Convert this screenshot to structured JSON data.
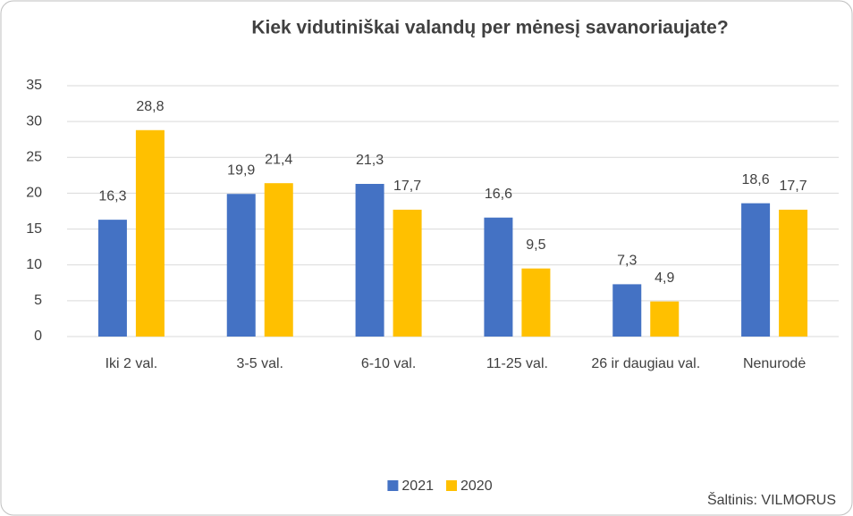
{
  "chart_data": {
    "type": "bar",
    "title": "Kiek vidutiniškai valandų per mėnesį savanoriaujate?",
    "categories": [
      "Iki 2 val.",
      "3-5 val.",
      "6-10 val.",
      "11-25 val.",
      "26 ir daugiau val.",
      "Nenurodė"
    ],
    "series": [
      {
        "name": "2021",
        "color": "#4472c4",
        "values": [
          16.3,
          19.9,
          21.3,
          16.6,
          7.3,
          18.6
        ],
        "value_labels": [
          "16,3",
          "19,9",
          "21,3",
          "16,6",
          "7,3",
          "18,6"
        ]
      },
      {
        "name": "2020",
        "color": "#ffc000",
        "values": [
          28.8,
          21.4,
          17.7,
          9.5,
          4.9,
          17.7
        ],
        "value_labels": [
          "28,8",
          "21,4",
          "17,7",
          "9,5",
          "4,9",
          "17,7"
        ]
      }
    ],
    "ylim": [
      0,
      35
    ],
    "yticks": [
      0,
      5,
      10,
      15,
      20,
      25,
      30,
      35
    ],
    "grid": true,
    "legend": "bottom",
    "source": "Šaltinis: VILMORUS"
  }
}
